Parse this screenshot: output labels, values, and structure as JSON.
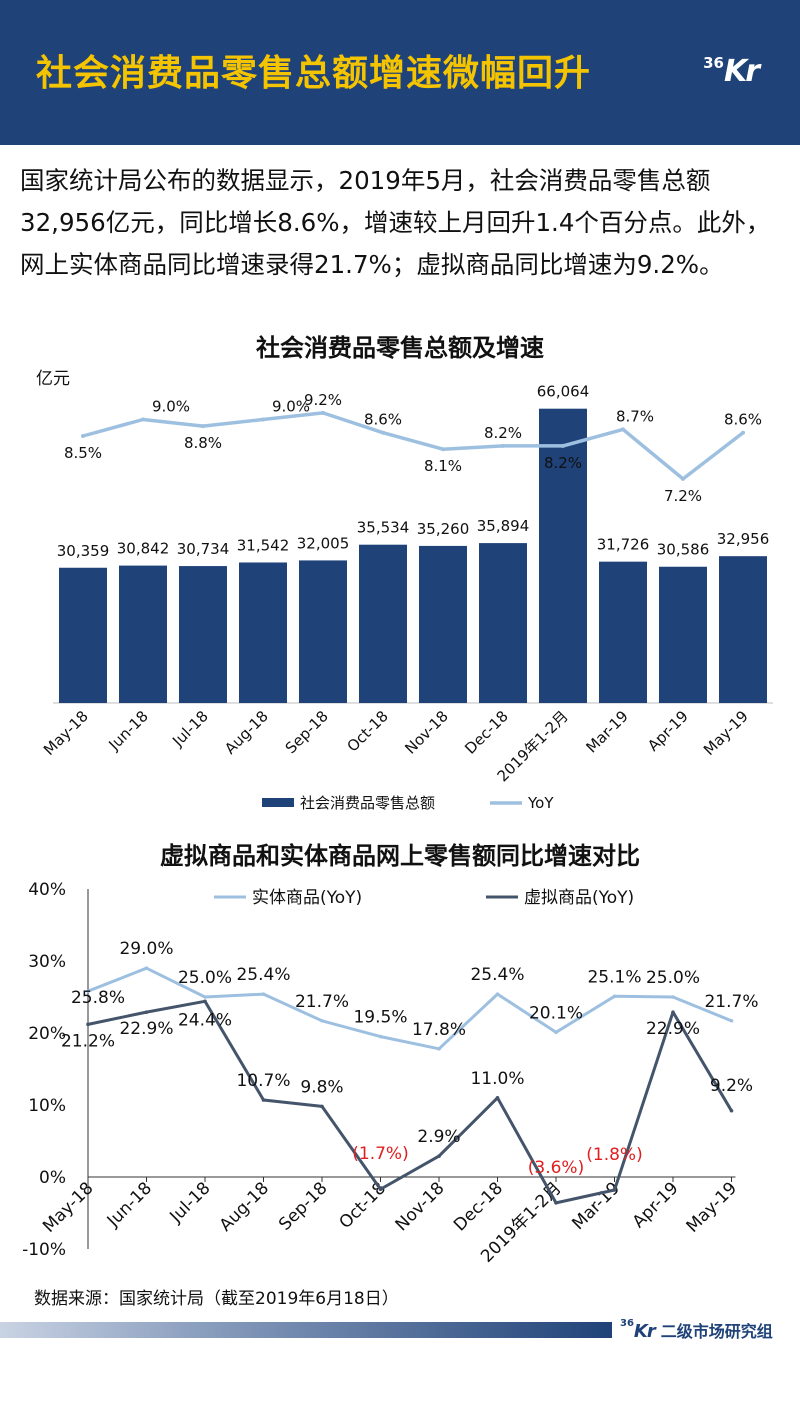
{
  "header": {
    "title": "社会消费品零售总额增速微幅回升",
    "logo_small": "36",
    "logo_big": "Kr"
  },
  "intro_text": "国家统计局公布的数据显示，2019年5月，社会消费品零售总额32,956亿元，同比增长8.6%，增速较上月回升1.4个百分点。此外，网上实体商品同比增速录得21.7%；虚拟商品同比增速为9.2%。",
  "chart_data": [
    {
      "type": "bar",
      "title": "社会消费品零售总额及增速",
      "ylabel": "亿元",
      "categories": [
        "May-18",
        "Jun-18",
        "Jul-18",
        "Aug-18",
        "Sep-18",
        "Oct-18",
        "Nov-18",
        "Dec-18",
        "2019年1-2月",
        "Mar-19",
        "Apr-19",
        "May-19"
      ],
      "series": [
        {
          "name": "社会消费品零售总额",
          "type": "bar",
          "color": "#1f4278",
          "values": [
            30359,
            30842,
            30734,
            31542,
            32005,
            35534,
            35260,
            35894,
            66064,
            31726,
            30586,
            32956
          ],
          "labels": [
            "30,359",
            "30,842",
            "30,734",
            "31,542",
            "32,005",
            "35,534",
            "35,260",
            "35,894",
            "66,064",
            "31,726",
            "30,586",
            "32,956"
          ]
        },
        {
          "name": "YoY",
          "type": "line",
          "color": "#9ec0e0",
          "values": [
            8.5,
            9.0,
            8.8,
            9.0,
            9.2,
            8.6,
            8.1,
            8.2,
            8.2,
            8.7,
            7.2,
            8.6
          ],
          "labels": [
            "8.5%",
            "9.0%",
            "8.8%",
            "9.0%",
            "9.2%",
            "8.6%",
            "8.1%",
            "8.2%",
            "8.2%",
            "8.7%",
            "7.2%",
            "8.6%"
          ]
        }
      ],
      "legend": "bottom"
    },
    {
      "type": "line",
      "title": "虚拟商品和实体商品网上零售额同比增速对比",
      "categories": [
        "May-18",
        "Jun-18",
        "Jul-18",
        "Aug-18",
        "Sep-18",
        "Oct-18",
        "Nov-18",
        "Dec-18",
        "2019年1-2月",
        "Mar-19",
        "Apr-19",
        "May-19"
      ],
      "ylim": [
        -10,
        40
      ],
      "yticks": [
        "-10%",
        "0%",
        "10%",
        "20%",
        "30%",
        "40%"
      ],
      "series": [
        {
          "name": "实体商品(YoY)",
          "color": "#9ec0e0",
          "values": [
            25.8,
            29.0,
            25.0,
            25.4,
            21.7,
            19.5,
            17.8,
            25.4,
            20.1,
            25.1,
            25.0,
            21.7
          ],
          "labels": [
            "25.8%",
            "29.0%",
            "25.0%",
            "25.4%",
            "21.7%",
            "19.5%",
            "17.8%",
            "25.4%",
            "20.1%",
            "25.1%",
            "25.0%",
            "21.7%"
          ]
        },
        {
          "name": "虚拟商品(YoY)",
          "color": "#44546a",
          "values": [
            21.2,
            22.9,
            24.4,
            10.7,
            9.8,
            -1.7,
            2.9,
            11.0,
            -3.6,
            -1.8,
            22.9,
            9.2
          ],
          "labels": [
            "21.2%",
            "22.9%",
            "24.4%",
            "10.7%",
            "9.8%",
            "(1.7%)",
            "2.9%",
            "11.0%",
            "(3.6%)",
            "(1.8%)",
            "22.9%",
            "9.2%"
          ]
        }
      ],
      "legend": "top",
      "negative_label_color": "#e02020"
    }
  ],
  "source_text": "数据来源：国家统计局（截至2019年6月18日）",
  "footer": {
    "logo_small": "36",
    "logo_big": "Kr",
    "dept": "二级市场研究组"
  }
}
